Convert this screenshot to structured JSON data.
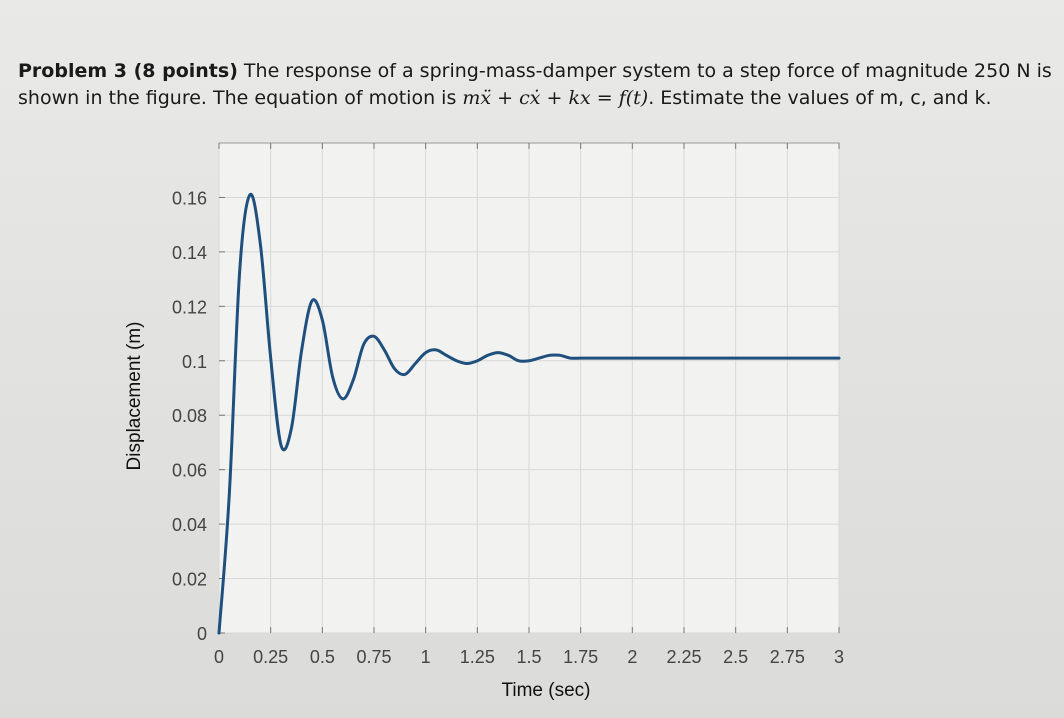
{
  "problem": {
    "heading": "Problem 3 (8 points)",
    "line1": " The response of a spring-mass-damper system to a step force of magnitude 250 N is",
    "line2a": "shown in the figure. The equation of motion is ",
    "equation": "mẍ + cẋ + kx = f(t)",
    "line2b": ". Estimate the values of m, c, and k."
  },
  "chart_data": {
    "type": "line",
    "title": "",
    "xlabel": "Time (sec)",
    "ylabel": "Displacement (m)",
    "xlim": [
      0,
      3
    ],
    "ylim": [
      0,
      0.18
    ],
    "x_ticks": [
      "0",
      "0.25",
      "0.5",
      "0.75",
      "1",
      "1.25",
      "1.5",
      "1.75",
      "2",
      "2.25",
      "2.5",
      "2.75",
      "3"
    ],
    "y_ticks": [
      "0",
      "0.02",
      "0.04",
      "0.06",
      "0.08",
      "0.1",
      "0.12",
      "0.14",
      "0.16"
    ],
    "grid": true,
    "series": [
      {
        "name": "",
        "x": [
          0,
          0.05,
          0.1,
          0.15,
          0.2,
          0.25,
          0.3,
          0.35,
          0.4,
          0.45,
          0.5,
          0.55,
          0.6,
          0.65,
          0.7,
          0.75,
          0.8,
          0.85,
          0.9,
          0.95,
          1.0,
          1.05,
          1.1,
          1.15,
          1.2,
          1.25,
          1.3,
          1.35,
          1.4,
          1.45,
          1.5,
          1.55,
          1.6,
          1.65,
          1.7,
          1.75,
          1.8,
          1.85,
          1.9,
          1.95,
          2.0,
          2.1,
          2.2,
          2.3,
          2.4,
          2.5,
          2.6,
          2.7,
          2.8,
          2.9,
          3.0
        ],
        "values": [
          0,
          0.051,
          0.133,
          0.161,
          0.143,
          0.101,
          0.069,
          0.075,
          0.104,
          0.122,
          0.115,
          0.094,
          0.086,
          0.093,
          0.106,
          0.109,
          0.104,
          0.097,
          0.095,
          0.099,
          0.103,
          0.104,
          0.102,
          0.1,
          0.099,
          0.1,
          0.102,
          0.103,
          0.102,
          0.1,
          0.1,
          0.101,
          0.102,
          0.102,
          0.101,
          0.101,
          0.101,
          0.101,
          0.101,
          0.101,
          0.101,
          0.101,
          0.101,
          0.101,
          0.101,
          0.101,
          0.101,
          0.101,
          0.101,
          0.101,
          0.101
        ],
        "color": "#1f4f7c"
      }
    ]
  }
}
